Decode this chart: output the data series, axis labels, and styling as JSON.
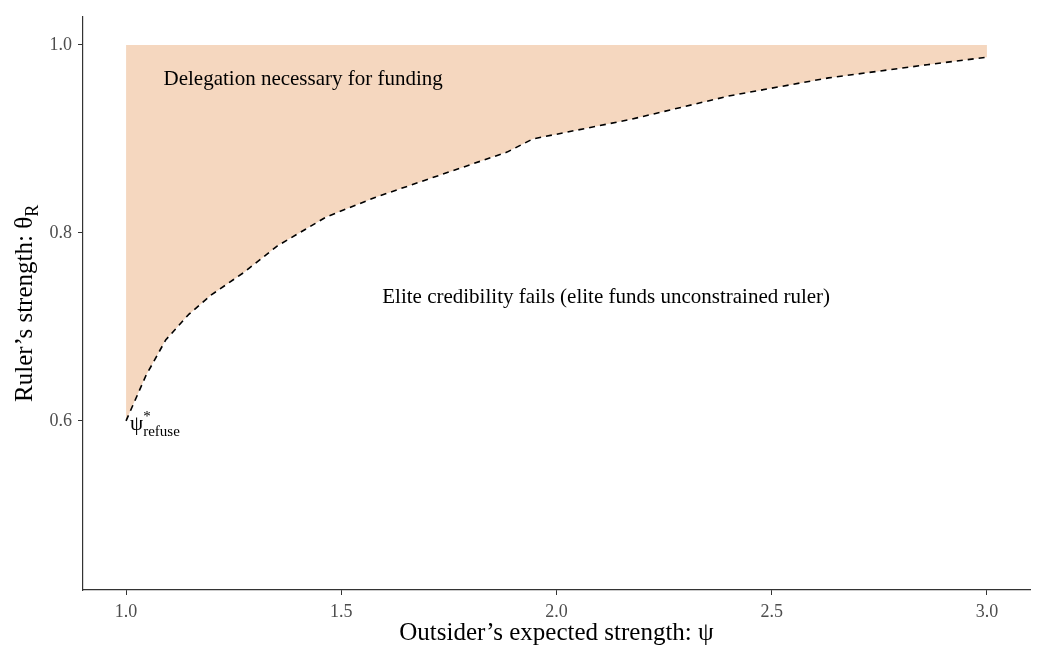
{
  "chart_data": {
    "type": "line",
    "xlabel": "Outsider’s expected strength: ψ",
    "ylabel": "Ruler’s strength: θ$_{R}$",
    "x": [
      1.0,
      1.046,
      1.092,
      1.145,
      1.198,
      1.274,
      1.351,
      1.465,
      1.58,
      1.732,
      1.885,
      1.945,
      2.174,
      2.403,
      2.632,
      2.861,
      3.0
    ],
    "series": [
      {
        "type": "area",
        "color": "#f5d7bf",
        "values": [
          1,
          1,
          1,
          1,
          1,
          1,
          1,
          1,
          1,
          1,
          1,
          1,
          1,
          1,
          1,
          1,
          1
        ]
      },
      {
        "color": "#000000",
        "line_style": "dashed",
        "values": [
          0.6,
          0.648,
          0.686,
          0.713,
          0.734,
          0.758,
          0.786,
          0.817,
          0.838,
          0.862,
          0.886,
          0.9,
          0.921,
          0.946,
          0.965,
          0.979,
          0.987
        ]
      }
    ],
    "xlim": [
      0.9,
      3.1
    ],
    "xticks": [
      {
        "value": 1,
        "label": "1.0"
      },
      1.5,
      {
        "value": 2,
        "label": "2.0"
      },
      2.5,
      {
        "value": 3,
        "label": "3.0"
      }
    ],
    "ylim": [
      0.42,
      1.03
    ],
    "yticks": [
      0.6,
      0.8,
      {
        "value": 1,
        "label": "1.0"
      }
    ],
    "grid": false,
    "legend": false,
    "marker": "none",
    "annotations": [
      "Delegation necessary for funding",
      "Elite credibility fails (elite funds unconstrained ruler)",
      {
        "text": "ψ$^{*}$$_{refuse}$",
        "x": 1.0,
        "y": 0.6
      }
    ]
  }
}
